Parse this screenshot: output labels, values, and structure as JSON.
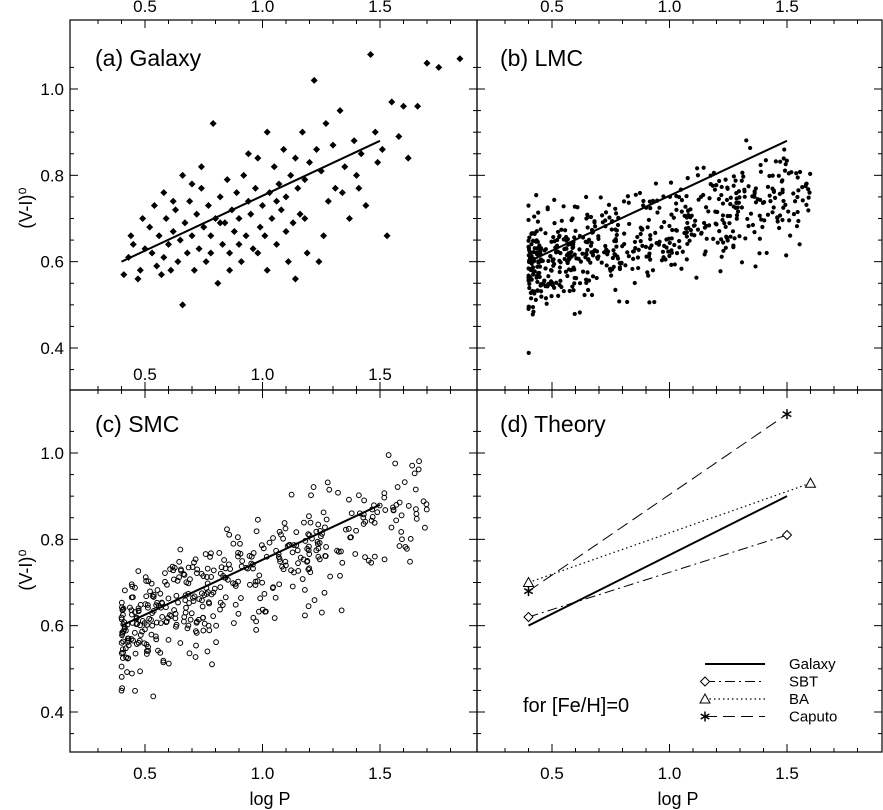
{
  "figure": {
    "shared_xlabel": "log P",
    "shared_ylabel": "(V-I)⁰",
    "x_ticks": [
      "0.5",
      "1.0",
      "1.5"
    ],
    "y_ticks": [
      "0.4",
      "0.6",
      "0.8",
      "1.0"
    ],
    "xlim": [
      0.2,
      1.9
    ],
    "ylim": [
      0.3,
      1.12
    ]
  },
  "chart_data": [
    {
      "type": "scatter",
      "panel": "a",
      "title": "(a) Galaxy",
      "marker": "filled-diamond",
      "xlabel": "",
      "ylabel": "(V-I)⁰",
      "xlim": [
        0.2,
        1.9
      ],
      "ylim": [
        0.3,
        1.12
      ],
      "fit_line": {
        "x": [
          0.4,
          1.5
        ],
        "y": [
          0.6,
          0.88
        ]
      },
      "points": [
        [
          0.41,
          0.57
        ],
        [
          0.43,
          0.61
        ],
        [
          0.45,
          0.64
        ],
        [
          0.47,
          0.56
        ],
        [
          0.48,
          0.58
        ],
        [
          0.5,
          0.63
        ],
        [
          0.52,
          0.68
        ],
        [
          0.53,
          0.62
        ],
        [
          0.55,
          0.59
        ],
        [
          0.56,
          0.66
        ],
        [
          0.57,
          0.57
        ],
        [
          0.58,
          0.61
        ],
        [
          0.59,
          0.7
        ],
        [
          0.6,
          0.64
        ],
        [
          0.61,
          0.58
        ],
        [
          0.62,
          0.67
        ],
        [
          0.63,
          0.72
        ],
        [
          0.64,
          0.6
        ],
        [
          0.65,
          0.65
        ],
        [
          0.66,
          0.5
        ],
        [
          0.67,
          0.69
        ],
        [
          0.68,
          0.62
        ],
        [
          0.69,
          0.74
        ],
        [
          0.7,
          0.66
        ],
        [
          0.71,
          0.58
        ],
        [
          0.72,
          0.71
        ],
        [
          0.73,
          0.63
        ],
        [
          0.74,
          0.77
        ],
        [
          0.75,
          0.68
        ],
        [
          0.76,
          0.6
        ],
        [
          0.77,
          0.73
        ],
        [
          0.78,
          0.66
        ],
        [
          0.79,
          0.92
        ],
        [
          0.8,
          0.7
        ],
        [
          0.81,
          0.55
        ],
        [
          0.82,
          0.75
        ],
        [
          0.83,
          0.64
        ],
        [
          0.84,
          0.69
        ],
        [
          0.85,
          0.79
        ],
        [
          0.86,
          0.62
        ],
        [
          0.87,
          0.72
        ],
        [
          0.88,
          0.67
        ],
        [
          0.89,
          0.76
        ],
        [
          0.9,
          0.7
        ],
        [
          0.91,
          0.6
        ],
        [
          0.92,
          0.8
        ],
        [
          0.93,
          0.66
        ],
        [
          0.94,
          0.74
        ],
        [
          0.95,
          0.71
        ],
        [
          0.96,
          0.63
        ],
        [
          0.97,
          0.77
        ],
        [
          0.98,
          0.84
        ],
        [
          0.99,
          0.68
        ],
        [
          1.0,
          0.73
        ],
        [
          1.01,
          0.66
        ],
        [
          1.02,
          0.9
        ],
        [
          1.03,
          0.76
        ],
        [
          1.04,
          0.7
        ],
        [
          1.05,
          0.82
        ],
        [
          1.06,
          0.64
        ],
        [
          1.07,
          0.78
        ],
        [
          1.08,
          0.72
        ],
        [
          1.09,
          0.86
        ],
        [
          1.1,
          0.75
        ],
        [
          1.11,
          0.6
        ],
        [
          1.12,
          0.8
        ],
        [
          1.13,
          0.69
        ],
        [
          1.14,
          0.84
        ],
        [
          1.15,
          0.77
        ],
        [
          1.16,
          0.71
        ],
        [
          1.17,
          0.9
        ],
        [
          1.18,
          0.79
        ],
        [
          1.19,
          0.62
        ],
        [
          1.2,
          0.83
        ],
        [
          1.22,
          1.02
        ],
        [
          1.23,
          0.86
        ],
        [
          1.24,
          0.6
        ],
        [
          1.25,
          0.81
        ],
        [
          1.27,
          0.92
        ],
        [
          1.28,
          0.74
        ],
        [
          1.3,
          0.87
        ],
        [
          1.31,
          0.77
        ],
        [
          1.33,
          0.95
        ],
        [
          1.35,
          0.82
        ],
        [
          1.37,
          0.7
        ],
        [
          1.39,
          0.88
        ],
        [
          1.4,
          0.8
        ],
        [
          1.42,
          0.85
        ],
        [
          1.44,
          0.73
        ],
        [
          1.46,
          1.08
        ],
        [
          1.48,
          0.9
        ],
        [
          1.49,
          0.83
        ],
        [
          1.51,
          0.86
        ],
        [
          1.53,
          0.66
        ],
        [
          1.55,
          0.97
        ],
        [
          1.58,
          0.89
        ],
        [
          1.6,
          0.96
        ],
        [
          1.62,
          0.84
        ],
        [
          1.66,
          0.96
        ],
        [
          1.7,
          1.06
        ],
        [
          1.75,
          1.05
        ],
        [
          1.84,
          1.07
        ],
        [
          0.44,
          0.66
        ],
        [
          0.49,
          0.7
        ],
        [
          0.54,
          0.73
        ],
        [
          0.58,
          0.76
        ],
        [
          0.62,
          0.74
        ],
        [
          0.66,
          0.8
        ],
        [
          0.7,
          0.78
        ],
        [
          0.74,
          0.82
        ],
        [
          0.78,
          0.62
        ],
        [
          0.82,
          0.69
        ],
        [
          0.86,
          0.58
        ],
        [
          0.9,
          0.64
        ],
        [
          0.94,
          0.85
        ],
        [
          0.98,
          0.62
        ],
        [
          1.02,
          0.58
        ],
        [
          1.06,
          0.74
        ],
        [
          1.1,
          0.67
        ],
        [
          1.14,
          0.56
        ],
        [
          1.18,
          0.7
        ],
        [
          1.26,
          0.66
        ],
        [
          1.34,
          0.76
        ],
        [
          1.41,
          0.77
        ]
      ]
    },
    {
      "type": "scatter",
      "panel": "b",
      "title": "(b) LMC",
      "marker": "filled-circle",
      "xlabel": "",
      "ylabel": "",
      "xlim": [
        0.2,
        1.9
      ],
      "ylim": [
        0.3,
        1.12
      ],
      "fit_line": {
        "x": [
          0.4,
          1.5
        ],
        "y": [
          0.6,
          0.88
        ]
      }
    },
    {
      "type": "scatter",
      "panel": "c",
      "title": "(c) SMC",
      "marker": "open-circle",
      "xlabel": "log P",
      "ylabel": "(V-I)⁰",
      "xlim": [
        0.2,
        1.9
      ],
      "ylim": [
        0.3,
        1.12
      ],
      "fit_line": {
        "x": [
          0.4,
          1.5
        ],
        "y": [
          0.6,
          0.88
        ]
      }
    },
    {
      "type": "line",
      "panel": "d",
      "title": "(d) Theory",
      "annotation": "for [Fe/H]=0",
      "xlabel": "log P",
      "ylabel": "",
      "xlim": [
        0.2,
        1.9
      ],
      "ylim": [
        0.3,
        1.12
      ],
      "legend_position": "bottom-right",
      "series": [
        {
          "name": "Galaxy",
          "style": "solid",
          "marker": "none",
          "x": [
            0.4,
            1.5
          ],
          "y": [
            0.6,
            0.9
          ]
        },
        {
          "name": "SBT",
          "style": "dash-dot",
          "marker": "diamond",
          "x": [
            0.4,
            1.5
          ],
          "y": [
            0.62,
            0.81
          ]
        },
        {
          "name": "BA",
          "style": "dotted",
          "marker": "triangle",
          "x": [
            0.4,
            1.6
          ],
          "y": [
            0.7,
            0.93
          ]
        },
        {
          "name": "Caputo",
          "style": "dashed",
          "marker": "asterisk",
          "x": [
            0.4,
            1.5
          ],
          "y": [
            0.68,
            1.09
          ]
        }
      ]
    }
  ]
}
